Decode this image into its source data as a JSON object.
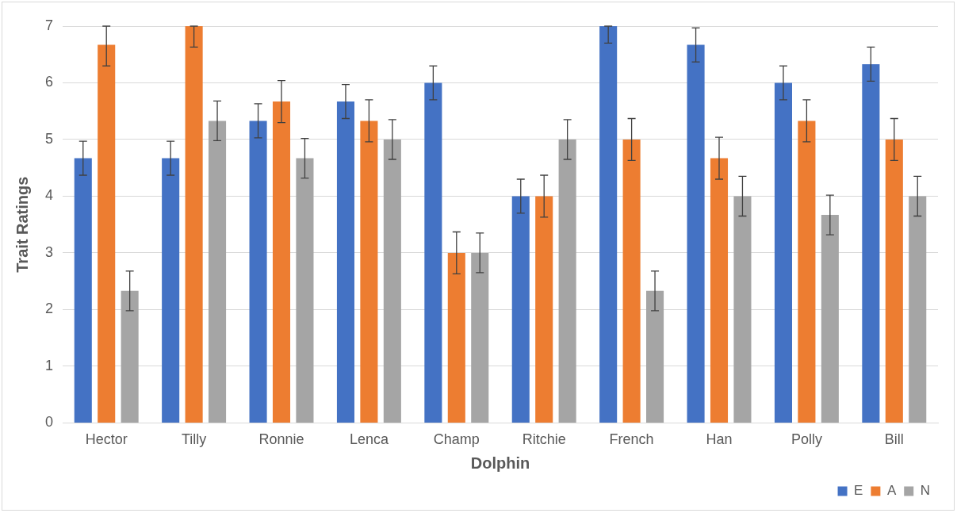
{
  "chart_data": {
    "type": "bar",
    "xlabel": "Dolphin",
    "ylabel": "Trait Ratings",
    "categories": [
      "Hector",
      "Tilly",
      "Ronnie",
      "Lenca",
      "Champ",
      "Ritchie",
      "French",
      "Han",
      "Polly",
      "Bill"
    ],
    "series": [
      {
        "name": "E",
        "color": "#4472c4",
        "values": [
          4.67,
          4.67,
          5.33,
          5.67,
          6,
          4,
          7,
          6.67,
          6,
          6.33
        ],
        "errors": [
          0.3,
          0.3,
          0.3,
          0.3,
          0.3,
          0.3,
          [
            6.7,
            7
          ],
          0.3,
          0.3,
          0.3
        ]
      },
      {
        "name": "A",
        "color": "#ed7d31",
        "values": [
          6.67,
          7,
          5.67,
          5.33,
          3,
          4,
          5,
          4.67,
          5.33,
          5
        ],
        "errors": [
          [
            6.3,
            7
          ],
          [
            6.63,
            7
          ],
          0.37,
          0.37,
          0.37,
          0.37,
          0.37,
          0.37,
          0.37,
          0.37
        ]
      },
      {
        "name": "N",
        "color": "#a5a5a5",
        "values": [
          2.33,
          5.33,
          4.67,
          5,
          3,
          5,
          2.33,
          4,
          3.67,
          4
        ],
        "errors": [
          0.35,
          0.35,
          0.35,
          0.35,
          0.35,
          0.35,
          0.35,
          0.35,
          0.35,
          0.35
        ]
      }
    ],
    "ylim": [
      0,
      7
    ],
    "yticks": [
      0,
      1,
      2,
      3,
      4,
      5,
      6,
      7
    ],
    "grid": "y",
    "legend": "bottom right"
  }
}
